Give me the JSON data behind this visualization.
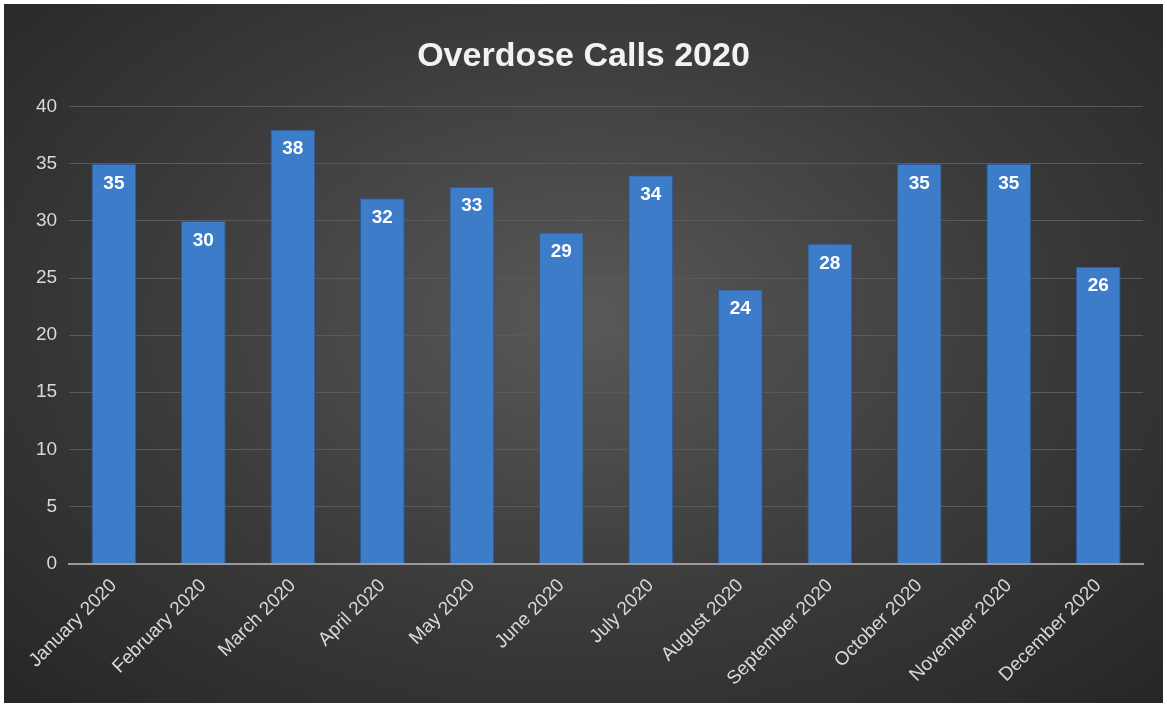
{
  "chart_data": {
    "type": "bar",
    "title": "Overdose Calls 2020",
    "categories": [
      "January 2020",
      "February 2020",
      "March 2020",
      "April 2020",
      "May 2020",
      "June 2020",
      "July 2020",
      "August 2020",
      "September 2020",
      "October 2020",
      "November 2020",
      "December 2020"
    ],
    "values": [
      35,
      30,
      38,
      32,
      33,
      29,
      34,
      24,
      28,
      35,
      35,
      26
    ],
    "color": "#3d7cc9",
    "ylim": [
      0,
      40
    ],
    "yticks": [
      0,
      5,
      10,
      15,
      20,
      25,
      30,
      35,
      40
    ],
    "grid": "y",
    "data_labels": true,
    "legend": false
  }
}
